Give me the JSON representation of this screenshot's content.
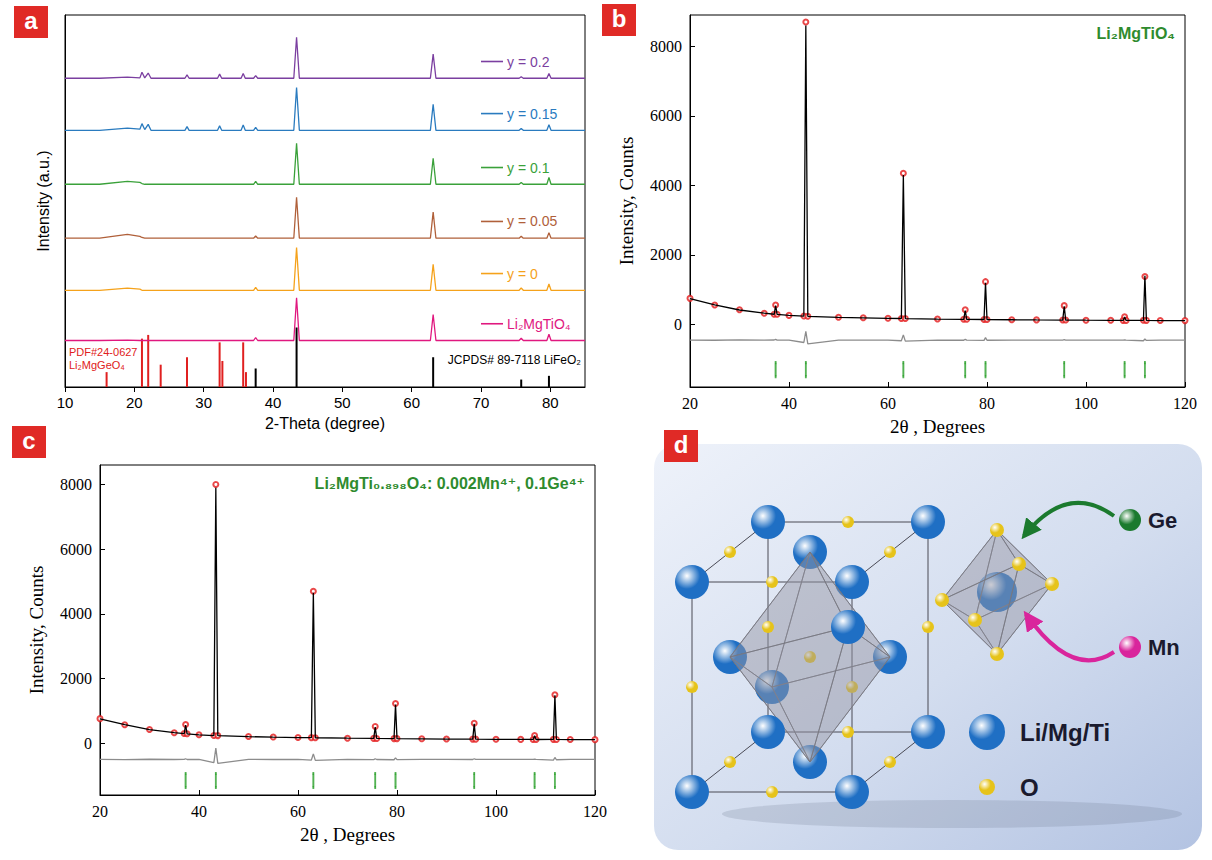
{
  "panel_letters": [
    "a",
    "b",
    "c",
    "d"
  ],
  "chart_data": [
    {
      "type": "line",
      "x_label": "2-Theta (degree)",
      "y_label": "Intensity (a.u.)",
      "xlim": [
        10,
        85
      ],
      "xticks": [
        10,
        20,
        30,
        40,
        50,
        60,
        70,
        80
      ],
      "ylim": [
        0,
        100
      ],
      "tick_labels": "x",
      "grid": false,
      "x": [
        10,
        15,
        19,
        20.8,
        21.1,
        21.5,
        22.0,
        22.4,
        27.3,
        27.6,
        27.9,
        32.0,
        32.3,
        32.6,
        35.4,
        35.7,
        36.0,
        37.2,
        37.5,
        37.8,
        43.0,
        43.4,
        43.8,
        62.7,
        63.1,
        63.5,
        75.5,
        75.8,
        76.1,
        79.5,
        79.8,
        80.1,
        85
      ],
      "series": [
        {
          "name": "y = 0.2",
          "color": "#7b3fa0",
          "values": [
            83,
            83,
            83.3,
            83.1,
            84.6,
            83.1,
            84.4,
            83,
            83,
            83.9,
            83,
            83,
            84.1,
            83,
            83,
            84.3,
            83,
            83,
            83.7,
            83,
            83,
            94,
            83,
            83,
            89.5,
            83,
            83,
            83.4,
            83,
            83,
            84.3,
            83,
            83
          ]
        },
        {
          "name": "y = 0.15",
          "color": "#2a7bbf",
          "values": [
            69,
            69,
            69.6,
            69.3,
            70.8,
            69.2,
            70.6,
            69,
            69,
            70,
            69,
            69,
            70.2,
            69,
            69,
            70.4,
            69,
            69,
            69.8,
            69,
            69,
            80.5,
            69,
            69,
            76,
            69,
            69,
            69.5,
            69,
            69,
            70.5,
            69,
            69
          ]
        },
        {
          "name": "y = 0.1",
          "color": "#3aa13a",
          "values": [
            54.5,
            54.5,
            55.3,
            55,
            54.7,
            54.5,
            54.5,
            54.5,
            54.5,
            54.5,
            54.5,
            54.5,
            54.5,
            54.5,
            54.5,
            54.5,
            54.5,
            54.5,
            55.3,
            54.5,
            54.5,
            65.5,
            54.5,
            54.5,
            61.5,
            54.5,
            54.5,
            55,
            54.5,
            54.5,
            56.3,
            54.5,
            54.5
          ]
        },
        {
          "name": "y = 0.05",
          "color": "#b0603a",
          "values": [
            40,
            40,
            41,
            40.5,
            40.2,
            40,
            40,
            40,
            40,
            40,
            40,
            40,
            40,
            40,
            40,
            40,
            40,
            40,
            40.6,
            40,
            40,
            51,
            40,
            40,
            47,
            40,
            40,
            40.5,
            40,
            40,
            41.5,
            40,
            40
          ]
        },
        {
          "name": "y = 0",
          "color": "#f5a21b",
          "values": [
            26,
            26,
            26.6,
            26.3,
            26,
            26,
            26,
            26,
            26,
            26,
            26,
            26,
            26,
            26,
            26,
            26,
            26,
            26,
            26.8,
            26,
            26,
            37.5,
            26,
            26,
            33,
            26,
            26,
            26.6,
            26,
            26,
            27.7,
            26,
            26
          ]
        },
        {
          "name": "Li₂MgTiO₄",
          "color": "#e0187f",
          "values": [
            12.5,
            12.5,
            12.6,
            12.5,
            12.5,
            12.5,
            12.5,
            12.5,
            12.5,
            12.5,
            12.5,
            12.5,
            12.5,
            12.5,
            12.5,
            12.5,
            12.5,
            12.5,
            13.3,
            12.5,
            12.5,
            24,
            12.5,
            12.5,
            19.5,
            12.5,
            12.5,
            13.1,
            12.5,
            12.5,
            14.2,
            12.5,
            12.5
          ]
        },
        {
          "name": "PDF#24-0627\nLi₂MgGeO₄",
          "type": "bar",
          "color": "#e02020",
          "x": [
            16.0,
            21.1,
            22.0,
            23.8,
            27.6,
            32.3,
            32.7,
            35.7,
            36.1
          ],
          "values": [
            4,
            13,
            14,
            6,
            8,
            12,
            7,
            12,
            4
          ]
        },
        {
          "name": "JCPDS# 89-7118 LiFeO₂",
          "type": "bar",
          "color": "#000000",
          "x": [
            37.5,
            43.4,
            63.1,
            75.8,
            79.8
          ],
          "values": [
            5,
            16,
            8,
            2,
            3
          ]
        }
      ]
    },
    {
      "type": "scatter",
      "title": "Li₂MgTiO₄",
      "x_label": "2θ , Degrees",
      "y_label": "Intensity, Counts",
      "xlim": [
        20,
        120
      ],
      "xticks": [
        20,
        40,
        60,
        80,
        100,
        120
      ],
      "ylim": [
        -1800,
        8900
      ],
      "yticks": [
        0,
        2000,
        4000,
        6000,
        8000
      ],
      "grid": false,
      "x": [
        20,
        25,
        30,
        35,
        37.0,
        37.3,
        37.6,
        40,
        43.0,
        43.4,
        43.8,
        50,
        55,
        60,
        62.7,
        63.1,
        63.5,
        70,
        75.3,
        75.6,
        75.9,
        79.4,
        79.7,
        80.0,
        85,
        90,
        95.3,
        95.6,
        95.9,
        100,
        105,
        107.5,
        107.8,
        108.1,
        111.6,
        111.9,
        112.2,
        115,
        120
      ],
      "series": [
        {
          "type": "scatter",
          "marker": "circle",
          "color": "#e31a1c",
          "values": [
            750,
            560,
            420,
            320,
            295,
            560,
            290,
            260,
            240,
            8700,
            235,
            205,
            190,
            175,
            172,
            4350,
            170,
            155,
            148,
            420,
            147,
            142,
            1230,
            142,
            135,
            130,
            127,
            540,
            126,
            122,
            118,
            117,
            220,
            116,
            118,
            1380,
            117,
            112,
            110
          ]
        },
        {
          "type": "line",
          "color": "#000000",
          "values": [
            745,
            565,
            415,
            322,
            292,
            540,
            288,
            258,
            238,
            8600,
            233,
            203,
            188,
            174,
            171,
            4300,
            169,
            154,
            147,
            400,
            146,
            141,
            1200,
            141,
            134,
            129,
            126,
            520,
            125,
            121,
            117,
            116,
            215,
            115,
            117,
            1400,
            116,
            111,
            109
          ]
        },
        {
          "type": "line",
          "color": "#8c8c8c",
          "values": [
            -450,
            -455,
            -445,
            -452,
            -448,
            -430,
            -452,
            -450,
            -520,
            -200,
            -560,
            -450,
            -452,
            -449,
            -470,
            -300,
            -480,
            -450,
            -455,
            -430,
            -452,
            -460,
            -380,
            -455,
            -450,
            -451,
            -452,
            -440,
            -450,
            -450,
            -449,
            -450,
            -445,
            -451,
            -470,
            -420,
            -460,
            -450,
            -450
          ]
        },
        {
          "type": "scatter",
          "marker": "vline",
          "color": "#2ca02c",
          "x": [
            37.3,
            43.4,
            63.1,
            75.6,
            79.7,
            95.6,
            107.8,
            111.9
          ],
          "values": [
            -1300,
            -1300,
            -1300,
            -1300,
            -1300,
            -1300,
            -1300,
            -1300
          ]
        }
      ]
    },
    {
      "type": "scatter",
      "title": "Li₂MgTi₀.₈₉₈O₄: 0.002Mn⁴⁺, 0.1Ge⁴⁺",
      "x_label": "2θ , Degrees",
      "y_label": "Intensity, Counts",
      "xlim": [
        20,
        120
      ],
      "xticks": [
        20,
        40,
        60,
        80,
        100,
        120
      ],
      "ylim": [
        -1600,
        8600
      ],
      "yticks": [
        0,
        2000,
        4000,
        6000,
        8000
      ],
      "grid": false,
      "x": [
        20,
        25,
        30,
        35,
        37.0,
        37.3,
        37.6,
        40,
        43.0,
        43.4,
        43.8,
        50,
        55,
        60,
        62.7,
        63.1,
        63.5,
        70,
        75.3,
        75.6,
        75.9,
        79.4,
        79.7,
        80.0,
        85,
        90,
        95.3,
        95.6,
        95.9,
        100,
        105,
        107.5,
        107.8,
        108.1,
        111.6,
        111.9,
        112.2,
        115,
        120
      ],
      "series": [
        {
          "type": "scatter",
          "marker": "circle",
          "color": "#e31a1c",
          "values": [
            760,
            570,
            425,
            325,
            300,
            580,
            295,
            262,
            240,
            8000,
            236,
            206,
            190,
            176,
            173,
            4700,
            171,
            156,
            150,
            520,
            149,
            143,
            1230,
            143,
            136,
            131,
            128,
            620,
            127,
            123,
            119,
            118,
            240,
            117,
            120,
            1500,
            118,
            113,
            111
          ]
        },
        {
          "type": "line",
          "color": "#000000",
          "values": [
            755,
            575,
            420,
            327,
            297,
            560,
            292,
            260,
            238,
            7900,
            234,
            204,
            188,
            175,
            172,
            4650,
            170,
            155,
            149,
            500,
            148,
            142,
            1200,
            142,
            135,
            130,
            127,
            600,
            126,
            122,
            118,
            117,
            230,
            116,
            119,
            1480,
            117,
            112,
            110
          ]
        },
        {
          "type": "line",
          "color": "#8c8c8c",
          "values": [
            -500,
            -505,
            -495,
            -502,
            -498,
            -480,
            -502,
            -500,
            -600,
            -150,
            -620,
            -500,
            -502,
            -499,
            -520,
            -330,
            -530,
            -500,
            -505,
            -480,
            -502,
            -510,
            -450,
            -505,
            -500,
            -501,
            -502,
            -480,
            -500,
            -500,
            -499,
            -500,
            -495,
            -501,
            -520,
            -440,
            -510,
            -500,
            -500
          ]
        },
        {
          "type": "scatter",
          "marker": "vline",
          "color": "#2ca02c",
          "x": [
            37.3,
            43.4,
            63.1,
            75.6,
            79.7,
            95.6,
            107.8,
            111.9
          ],
          "values": [
            -1150,
            -1150,
            -1150,
            -1150,
            -1150,
            -1150,
            -1150,
            -1150
          ]
        }
      ]
    }
  ],
  "diagram": {
    "substitution": [
      {
        "label": "Ge",
        "color": "#1b7a2e"
      },
      {
        "label": "Mn",
        "color": "#d9259c"
      }
    ],
    "key": [
      {
        "label": "Li/Mg/Ti",
        "color": "#1f6fc4"
      },
      {
        "label": "O",
        "color": "#e6c31a"
      }
    ]
  }
}
